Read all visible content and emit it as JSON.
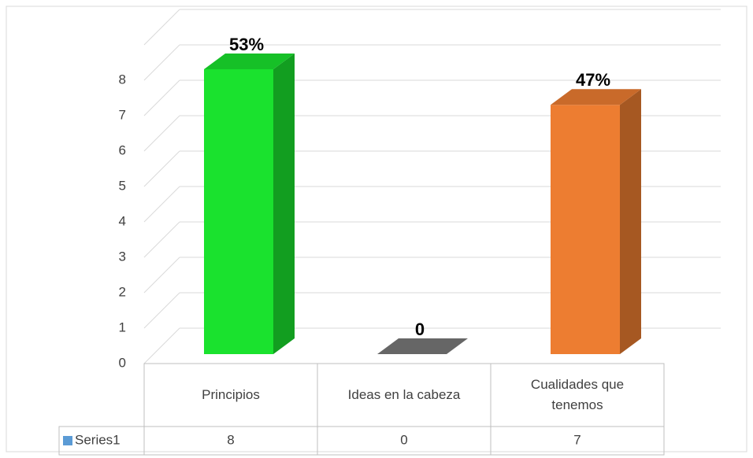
{
  "chart_data": {
    "type": "bar3d",
    "categories": [
      "Principios",
      "Ideas en la cabeza",
      "Cualidades que tenemos"
    ],
    "series": [
      {
        "name": "Series1",
        "color": "#5b9bd5",
        "values": [
          8,
          0,
          7
        ],
        "value_labels": [
          "53%",
          "0",
          "47%"
        ],
        "bar_colors": [
          "#1ae22e",
          "#666666",
          "#ed7d31"
        ]
      }
    ],
    "ylim": [
      0,
      9
    ],
    "yticks": [
      0,
      1,
      2,
      3,
      4,
      5,
      6,
      7,
      8
    ],
    "grid": true,
    "data_table": true
  }
}
